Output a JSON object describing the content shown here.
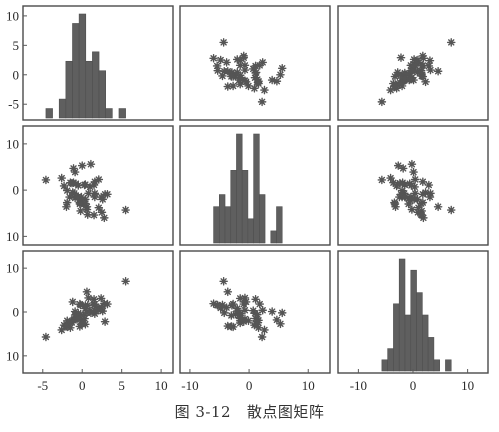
{
  "caption": {
    "figure_number": "图 3-12",
    "title": "散点图矩阵"
  },
  "colors": {
    "ink": "#555555",
    "bar_fill": "#5f5f5f",
    "frame": "#4a4a4a"
  },
  "chart_data": {
    "type": "scatter",
    "layout": "3x3 scatter-plot matrix; diagonal panels are histograms",
    "grid": false,
    "marker": "asterisk",
    "axis_ranges": {
      "var1": [
        -7,
        11
      ],
      "var2": [
        -11,
        13
      ],
      "var3": [
        -13,
        13
      ]
    },
    "left_tick_labels": [
      [
        "-5",
        "0",
        "5",
        "10"
      ],
      [
        "10",
        "0",
        "10"
      ],
      [
        "10",
        "0",
        "10"
      ]
    ],
    "bottom_tick_labels": [
      [
        "-5",
        "0",
        "5",
        "10"
      ],
      [
        "-10",
        "0",
        "10"
      ],
      [
        "-10",
        "0",
        "10"
      ]
    ],
    "variables": {
      "var1": [
        2.1,
        1.6,
        0.6,
        2.5,
        -0.1,
        0.3,
        -2.3,
        0.4,
        -1.9,
        -1.1,
        -0.9,
        -1.3,
        -1.5,
        0.4,
        -0.2,
        -0.5,
        -2.6,
        -0.9,
        1.6,
        -0.2,
        1.0,
        2.4,
        2.6,
        -1.1,
        2.8,
        -0.3,
        -1.0,
        3.2,
        1.5,
        -1.9,
        0.2,
        -1.6,
        1.5,
        -0.5,
        0.7,
        -2.0,
        1.1,
        -1.2,
        2.9,
        0.8,
        0.4,
        5.5,
        2.1,
        -0.3,
        -4.6,
        -0.8,
        0.0,
        0.6,
        1.6,
        -0.6
      ],
      "var2": [
        -3.8,
        1.8,
        -3.6,
        -4.8,
        -1.5,
        1.1,
        0.9,
        1.2,
        -2.7,
        1.6,
        -1.7,
        1.5,
        1.6,
        -2.0,
        -2.3,
        -1.4,
        2.6,
        3.9,
        -1.5,
        -4.5,
        0.7,
        -1.5,
        -2.0,
        4.7,
        -6.0,
        -2.7,
        -0.7,
        -0.9,
        -5.4,
        -0.1,
        -3.0,
        -1.5,
        1.1,
        1.0,
        -5.3,
        -3.6,
        5.6,
        -0.5,
        -0.9,
        -0.7,
        -2.9,
        -4.3,
        2.3,
        -3.0,
        2.2,
        1.4,
        5.3,
        -4.2,
        -0.7,
        -1.5
      ],
      "var3": [
        1.0,
        1.8,
        4.6,
        0.9,
        -2.0,
        -1.5,
        -3.0,
        -2.8,
        -3.4,
        -1.9,
        -0.7,
        -2.4,
        -3.6,
        0.8,
        -0.5,
        -1.4,
        -4.1,
        0.1,
        -0.4,
        1.6,
        0.3,
        3.1,
        0.2,
        -1.8,
        1.9,
        1.8,
        -1.6,
        1.8,
        1.6,
        -2.0,
        -0.8,
        -2.5,
        2.9,
        -0.3,
        1.5,
        -3.2,
        -0.2,
        2.3,
        -2.2,
        3.2,
        1.5,
        7.0,
        0.4,
        -3.3,
        -5.7,
        -0.6,
        -2.7,
        -0.2,
        0.4,
        -1.5
      ]
    }
  }
}
